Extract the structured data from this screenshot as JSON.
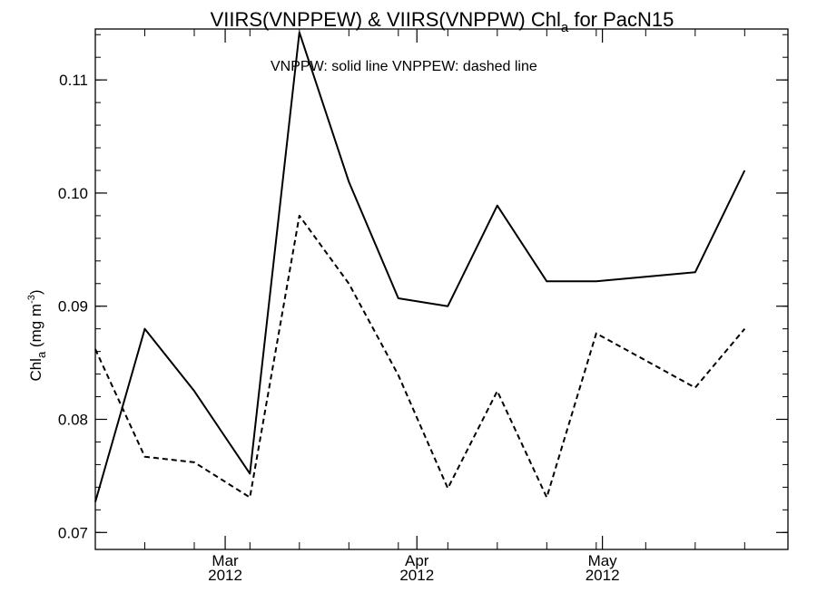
{
  "chart_data": {
    "type": "line",
    "title_main": "VIIRS(VNPPEW) & VIIRS(VNPPW)  Chl",
    "title_sub": "a",
    "title_end": " for PacN15",
    "ylabel_main": "Chl",
    "ylabel_sub": "a",
    "ylabel_unit": " (mg m",
    "ylabel_sup": "-3",
    "ylabel_close": ")",
    "annotation": "VNPPW: solid line   VNPPEW: dashed line",
    "ylim": [
      0.0685,
      0.1145
    ],
    "yticks": [
      0.07,
      0.08,
      0.09,
      0.1,
      0.11
    ],
    "ytick_labels": [
      "0.07",
      "0.08",
      "0.09",
      "0.10",
      "0.11"
    ],
    "xlim": [
      "2012-02-09",
      "2012-05-31"
    ],
    "xticks": [
      {
        "date": "2012-03-01",
        "month": "Mar",
        "year": "2012"
      },
      {
        "date": "2012-04-01",
        "month": "Apr",
        "year": "2012"
      },
      {
        "date": "2012-05-01",
        "month": "May",
        "year": "2012"
      }
    ],
    "minor_ticks": [
      "2012-02-17",
      "2012-02-25",
      "2012-03-05",
      "2012-03-13",
      "2012-03-21",
      "2012-03-29",
      "2012-04-06",
      "2012-04-14",
      "2012-04-22",
      "2012-04-30",
      "2012-05-08",
      "2012-05-16",
      "2012-05-24"
    ],
    "grid": false,
    "series": [
      {
        "style": "solid",
        "x": [
          "2012-02-09",
          "2012-02-17",
          "2012-02-25",
          "2012-03-05",
          "2012-03-13",
          "2012-03-21",
          "2012-03-29",
          "2012-04-06",
          "2012-04-14",
          "2012-04-22",
          "2012-04-30",
          "2012-05-08",
          "2012-05-16",
          "2012-05-24"
        ],
        "values": [
          0.0727,
          0.088,
          0.0825,
          0.0752,
          0.1142,
          0.101,
          0.0907,
          0.09,
          0.0989,
          0.0922,
          0.0922,
          0.0926,
          0.093,
          0.102
        ]
      },
      {
        "style": "dashed",
        "x": [
          "2012-02-09",
          "2012-02-17",
          "2012-02-25",
          "2012-03-05",
          "2012-03-13",
          "2012-03-21",
          "2012-03-29",
          "2012-04-06",
          "2012-04-14",
          "2012-04-22",
          "2012-04-30",
          "2012-05-08",
          "2012-05-16",
          "2012-05-24"
        ],
        "values": [
          0.0862,
          0.0767,
          0.0762,
          0.0731,
          0.098,
          0.092,
          0.0839,
          0.0739,
          0.0825,
          0.0731,
          0.0876,
          0.0852,
          0.0828,
          0.088
        ]
      }
    ]
  }
}
